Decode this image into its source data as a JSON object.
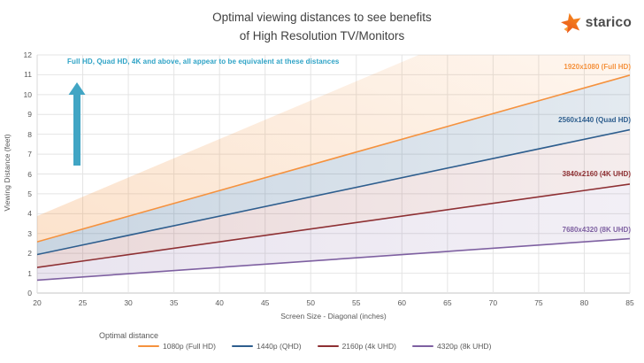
{
  "title": {
    "line1": "Optimal viewing distances to see benefits",
    "line2": "of High Resolution TV/Monitors"
  },
  "logo": {
    "text": "starico",
    "star_color": "#F26B21",
    "star_accent": "#F9A03C"
  },
  "chart_data": {
    "type": "line",
    "title": "Optimal viewing distances to see benefits of High Resolution TV/Monitors",
    "xlabel": "Screen Size - Diagonal (inches)",
    "ylabel": "Viewing Distance (feet)",
    "xlim": [
      20,
      85
    ],
    "ylim": [
      0,
      12
    ],
    "x_ticks": [
      20,
      25,
      30,
      35,
      40,
      45,
      50,
      55,
      60,
      65,
      70,
      75,
      80,
      85
    ],
    "y_ticks": [
      0,
      1,
      2,
      3,
      4,
      5,
      6,
      7,
      8,
      9,
      10,
      11,
      12
    ],
    "grid": true,
    "x": [
      20,
      85
    ],
    "series": [
      {
        "name": "1080p (Full HD)",
        "label": "1920x1080 (Full HD)",
        "color": "#F5923E",
        "values": [
          2.58,
          10.98
        ]
      },
      {
        "name": "1440p (QHD)",
        "label": "2560x1440 (Quad HD)",
        "color": "#2E5E8E",
        "values": [
          1.94,
          8.23
        ]
      },
      {
        "name": "2160p (4k UHD)",
        "label": "3840x2160 (4K UHD)",
        "color": "#8E3033",
        "values": [
          1.29,
          5.49
        ]
      },
      {
        "name": "4320p (8k UHD)",
        "label": "7680x4320 (8K UHD)",
        "color": "#7E60A1",
        "values": [
          0.65,
          2.74
        ]
      }
    ],
    "bands": [
      {
        "name": "above-full-hd-band",
        "upper": [
          3.88,
          16.49
        ],
        "lower": [
          2.58,
          10.98
        ],
        "color": "#F2923E",
        "alpha_from": 0.26,
        "alpha_to": 0.05,
        "diagonal": true
      },
      {
        "name": "full-hd-to-quad-hd-band",
        "upper": [
          2.58,
          10.98
        ],
        "lower": [
          1.94,
          8.23
        ],
        "color": "#2E5E8E",
        "alpha_from": 0.26,
        "alpha_to": 0.13,
        "diagonal": false
      },
      {
        "name": "quad-hd-to-4k-band",
        "upper": [
          1.94,
          8.23
        ],
        "lower": [
          1.29,
          5.49
        ],
        "color": "#8E3033",
        "alpha_from": 0.19,
        "alpha_to": 0.09,
        "diagonal": false
      },
      {
        "name": "4k-to-8k-band",
        "upper": [
          1.29,
          5.49
        ],
        "lower": [
          0.65,
          2.74
        ],
        "color": "#7E60A1",
        "alpha_from": 0.17,
        "alpha_to": 0.1,
        "diagonal": false
      }
    ],
    "annotation": "Full HD, Quad HD, 4K and above, all appear to be equivalent at these distances",
    "annotation_color": "#2EA3C6",
    "arrow_color": "#41A5C4",
    "legend_title": "Optimal distance",
    "legend_position": "bottom"
  }
}
